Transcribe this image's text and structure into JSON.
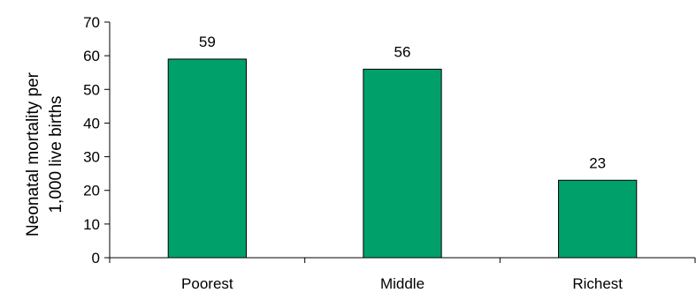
{
  "chart_data": {
    "type": "bar",
    "title": "",
    "xlabel": "",
    "ylabel_lines": [
      "Neonatal mortality per",
      "1,000 live births"
    ],
    "categories": [
      "Poorest",
      "Middle",
      "Richest"
    ],
    "values": [
      59,
      56,
      23
    ],
    "data_labels": [
      "59",
      "56",
      "23"
    ],
    "ylim": [
      0,
      70
    ],
    "yticks": [
      0,
      10,
      20,
      30,
      40,
      50,
      60,
      70
    ],
    "grid": false,
    "legend": "none",
    "bar_color": "#00A06A",
    "bar_edge_color": "#000000"
  }
}
